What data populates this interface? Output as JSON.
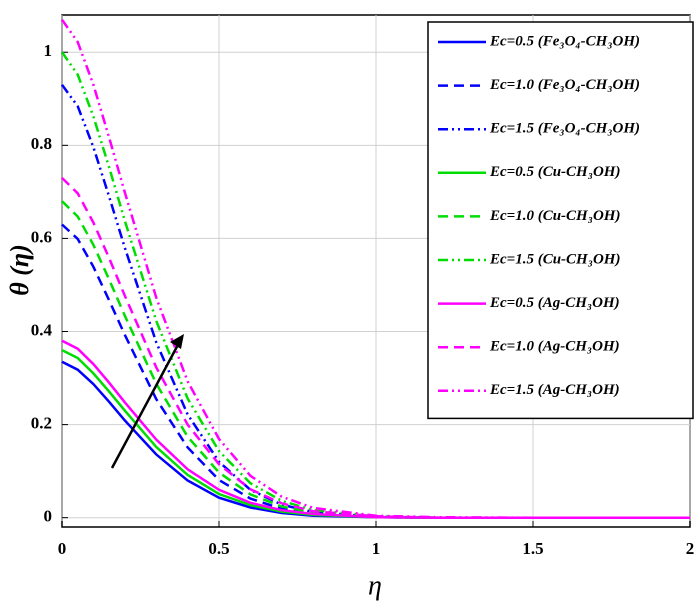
{
  "chart_data": {
    "type": "line",
    "xlabel": "η",
    "ylabel": "θ (η)",
    "x": [
      0,
      0.05,
      0.1,
      0.15,
      0.2,
      0.3,
      0.4,
      0.5,
      0.6,
      0.7,
      0.8,
      1.0,
      1.2,
      1.5,
      2
    ],
    "series": [
      {
        "name": "Ec=0.5 (Fe₃O₄-CH₃OH)",
        "color": "#0000ff",
        "style": "solid",
        "values": [
          0.335,
          0.318,
          0.287,
          0.249,
          0.209,
          0.136,
          0.08,
          0.043,
          0.022,
          0.01,
          0.004,
          0.001,
          0,
          0,
          0
        ]
      },
      {
        "name": "Ec=1.0 (Fe₃O₄-CH₃OH)",
        "color": "#0000ff",
        "style": "dashed",
        "values": [
          0.63,
          0.599,
          0.539,
          0.467,
          0.393,
          0.255,
          0.151,
          0.081,
          0.041,
          0.019,
          0.008,
          0.001,
          0,
          0,
          0
        ]
      },
      {
        "name": "Ec=1.5 (Fe₃O₄-CH₃OH)",
        "color": "#0000ff",
        "style": "dashdot",
        "values": [
          0.93,
          0.884,
          0.796,
          0.69,
          0.58,
          0.377,
          0.222,
          0.12,
          0.06,
          0.028,
          0.012,
          0.002,
          0,
          0,
          0
        ]
      },
      {
        "name": "Ec=0.5 (Cu-CH₃OH)",
        "color": "#00dd00",
        "style": "solid",
        "values": [
          0.36,
          0.343,
          0.31,
          0.271,
          0.23,
          0.152,
          0.092,
          0.051,
          0.027,
          0.013,
          0.006,
          0.001,
          0,
          0,
          0
        ]
      },
      {
        "name": "Ec=1.0 (Cu-CH₃OH)",
        "color": "#00dd00",
        "style": "dashed",
        "values": [
          0.68,
          0.647,
          0.586,
          0.512,
          0.434,
          0.288,
          0.174,
          0.097,
          0.05,
          0.024,
          0.011,
          0.002,
          0,
          0,
          0
        ]
      },
      {
        "name": "Ec=1.5 (Cu-CH₃OH)",
        "color": "#00dd00",
        "style": "dashdot",
        "values": [
          1,
          0.952,
          0.862,
          0.753,
          0.638,
          0.423,
          0.256,
          0.143,
          0.074,
          0.036,
          0.016,
          0.003,
          0,
          0,
          0
        ]
      },
      {
        "name": "Ec=0.5 (Ag-CH₃OH)",
        "color": "#ff00ff",
        "style": "solid",
        "values": [
          0.38,
          0.363,
          0.33,
          0.29,
          0.248,
          0.168,
          0.104,
          0.06,
          0.032,
          0.016,
          0.008,
          0.001,
          0,
          0,
          0
        ]
      },
      {
        "name": "Ec=1.0 (Ag-CH₃OH)",
        "color": "#ff00ff",
        "style": "dashed",
        "values": [
          0.73,
          0.697,
          0.634,
          0.558,
          0.477,
          0.323,
          0.2,
          0.115,
          0.061,
          0.031,
          0.014,
          0.003,
          0,
          0,
          0
        ]
      },
      {
        "name": "Ec=1.5 (Ag-CH₃OH)",
        "color": "#ff00ff",
        "style": "dashdot",
        "values": [
          1.07,
          1.022,
          0.93,
          0.817,
          0.699,
          0.473,
          0.293,
          0.169,
          0.09,
          0.045,
          0.021,
          0.004,
          0.001,
          0,
          0
        ]
      }
    ],
    "xlim": [
      0,
      2
    ],
    "ylim": [
      -0.02,
      1.08
    ],
    "xticks": [
      0,
      0.5,
      1,
      1.5,
      2
    ],
    "yticks": [
      0,
      0.2,
      0.4,
      0.6,
      0.8,
      1
    ],
    "grid": true,
    "legend": "upper right"
  }
}
